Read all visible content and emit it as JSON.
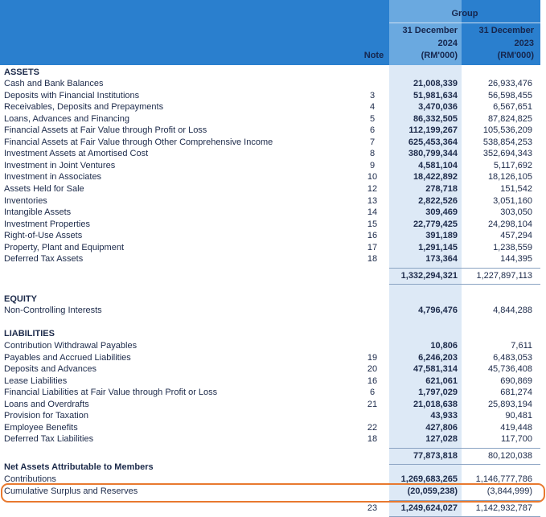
{
  "header": {
    "group": "Group",
    "note": "Note",
    "col_2024": [
      "31 December",
      "2024",
      "(RM'000)"
    ],
    "col_2023": [
      "31 December",
      "2023",
      "(RM'000)"
    ]
  },
  "sections": [
    {
      "title": "ASSETS",
      "rows": [
        {
          "label": "Cash and Bank Balances",
          "v2024": "21,008,339",
          "v2023": "26,933,476"
        },
        {
          "label": "Deposits with Financial Institutions",
          "note": "3",
          "v2024": "51,981,634",
          "v2023": "56,598,455"
        },
        {
          "label": "Receivables, Deposits and Prepayments",
          "note": "4",
          "v2024": "3,470,036",
          "v2023": "6,567,651"
        },
        {
          "label": "Loans, Advances and Financing",
          "note": "5",
          "v2024": "86,332,505",
          "v2023": "87,824,825"
        },
        {
          "label": "Financial Assets at Fair Value through Profit or Loss",
          "note": "6",
          "v2024": "112,199,267",
          "v2023": "105,536,209"
        },
        {
          "label": "Financial Assets at Fair Value through Other Comprehensive Income",
          "note": "7",
          "v2024": "625,453,364",
          "v2023": "538,854,253"
        },
        {
          "label": "Investment Assets at Amortised Cost",
          "note": "8",
          "v2024": "380,799,344",
          "v2023": "352,694,343"
        },
        {
          "label": "Investment in Joint Ventures",
          "note": "9",
          "v2024": "4,581,104",
          "v2023": "5,117,692"
        },
        {
          "label": "Investment in Associates",
          "note": "10",
          "v2024": "18,422,892",
          "v2023": "18,126,105"
        },
        {
          "label": "Assets Held for Sale",
          "note": "12",
          "v2024": "278,718",
          "v2023": "151,542"
        },
        {
          "label": "Inventories",
          "note": "13",
          "v2024": "2,822,526",
          "v2023": "3,051,160"
        },
        {
          "label": "Intangible Assets",
          "note": "14",
          "v2024": "309,469",
          "v2023": "303,050"
        },
        {
          "label": "Investment Properties",
          "note": "15",
          "v2024": "22,779,425",
          "v2023": "24,298,104"
        },
        {
          "label": "Right-of-Use Assets",
          "note": "16",
          "v2024": "391,189",
          "v2023": "457,294"
        },
        {
          "label": "Property, Plant and Equipment",
          "note": "17",
          "v2024": "1,291,145",
          "v2023": "1,238,559"
        },
        {
          "label": "Deferred Tax Assets",
          "note": "18",
          "v2024": "173,364",
          "v2023": "144,395"
        }
      ],
      "total": {
        "v2024": "1,332,294,321",
        "v2023": "1,227,897,113"
      }
    },
    {
      "title": "EQUITY",
      "rows": [
        {
          "label": "Non-Controlling Interests",
          "v2024": "4,796,476",
          "v2023": "4,844,288"
        }
      ]
    },
    {
      "title": "LIABILITIES",
      "rows": [
        {
          "label": "Contribution Withdrawal Payables",
          "v2024": "10,806",
          "v2023": "7,611"
        },
        {
          "label": "Payables and Accrued Liabilities",
          "note": "19",
          "v2024": "6,246,203",
          "v2023": "6,483,053"
        },
        {
          "label": "Deposits and Advances",
          "note": "20",
          "v2024": "47,581,314",
          "v2023": "45,736,408"
        },
        {
          "label": "Lease Liabilities",
          "note": "16",
          "v2024": "621,061",
          "v2023": "690,869"
        },
        {
          "label": "Financial Liabilities at Fair Value through Profit or Loss",
          "note": "6",
          "v2024": "1,797,029",
          "v2023": "681,274"
        },
        {
          "label": "Loans and Overdrafts",
          "note": "21",
          "v2024": "21,018,638",
          "v2023": "25,893,194"
        },
        {
          "label": "Provision for Taxation",
          "v2024": "43,933",
          "v2023": "90,481"
        },
        {
          "label": "Employee Benefits",
          "note": "22",
          "v2024": "427,806",
          "v2023": "419,448"
        },
        {
          "label": "Deferred Tax Liabilities",
          "note": "18",
          "v2024": "127,028",
          "v2023": "117,700"
        }
      ],
      "total": {
        "v2024": "77,873,818",
        "v2023": "80,120,038"
      }
    },
    {
      "title": "Net Assets Attributable to Members",
      "rows": [
        {
          "label": "Contributions",
          "v2024": "1,269,683,265",
          "v2023": "1,146,777,786"
        },
        {
          "label": "Cumulative Surplus and Reserves",
          "v2024": "(20,059,238)",
          "v2023": "(3,844,999)"
        }
      ],
      "total": {
        "note": "23",
        "v2024": "1,249,624,027",
        "v2023": "1,142,932,787"
      }
    }
  ]
}
